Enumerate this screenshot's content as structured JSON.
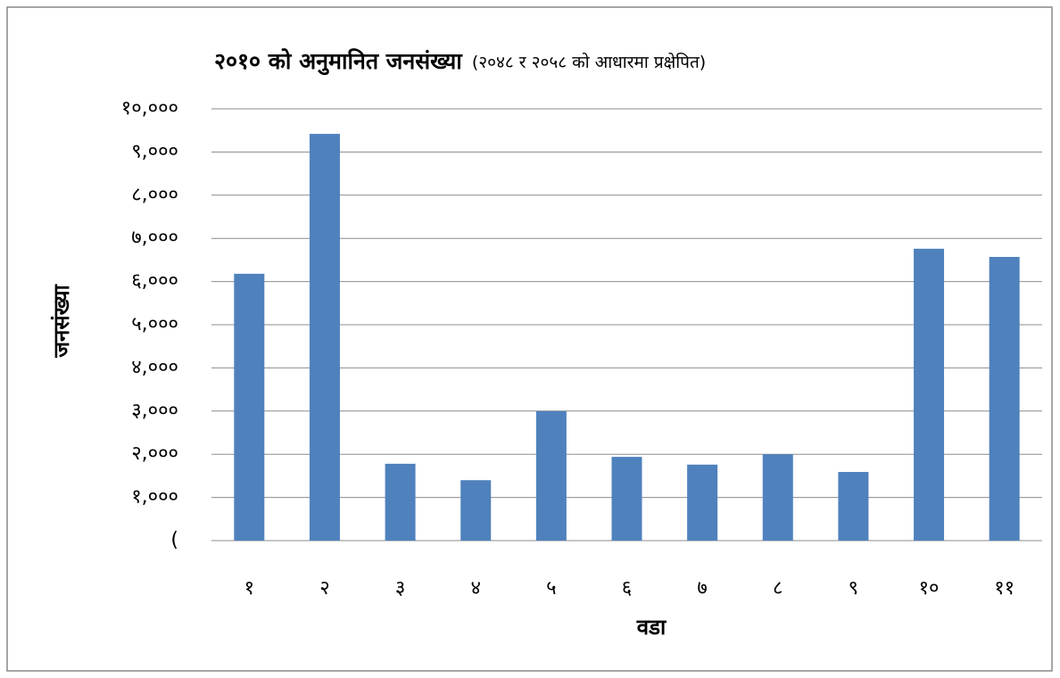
{
  "chart_data": {
    "type": "bar",
    "title": "२०१० को अनुमानित जनसंख्या",
    "subtitle": "(२०४८ र २०५८ को आधारमा प्रक्षेपित)",
    "x_label": "वडा",
    "y_label": "जनसंख्या",
    "categories": [
      "१",
      "२",
      "३",
      "४",
      "५",
      "६",
      "७",
      "८",
      "९",
      "१०",
      "११"
    ],
    "values": [
      6180,
      9420,
      1780,
      1400,
      3000,
      1940,
      1760,
      2000,
      1590,
      6760,
      6570
    ],
    "color": "#4f81bd",
    "ylim": [
      0,
      10000
    ],
    "yticks": [
      {
        "value": 0,
        "label": "("
      },
      {
        "value": 1000,
        "label": "१,०००"
      },
      {
        "value": 2000,
        "label": "२,०००"
      },
      {
        "value": 3000,
        "label": "३,०००"
      },
      {
        "value": 4000,
        "label": "४,०००"
      },
      {
        "value": 5000,
        "label": "५,०००"
      },
      {
        "value": 6000,
        "label": "६,०००"
      },
      {
        "value": 7000,
        "label": "७,०००"
      },
      {
        "value": 8000,
        "label": "८,०००"
      },
      {
        "value": 9000,
        "label": "९,०००"
      },
      {
        "value": 10000,
        "label": "१०,०००"
      }
    ],
    "grid": true
  }
}
